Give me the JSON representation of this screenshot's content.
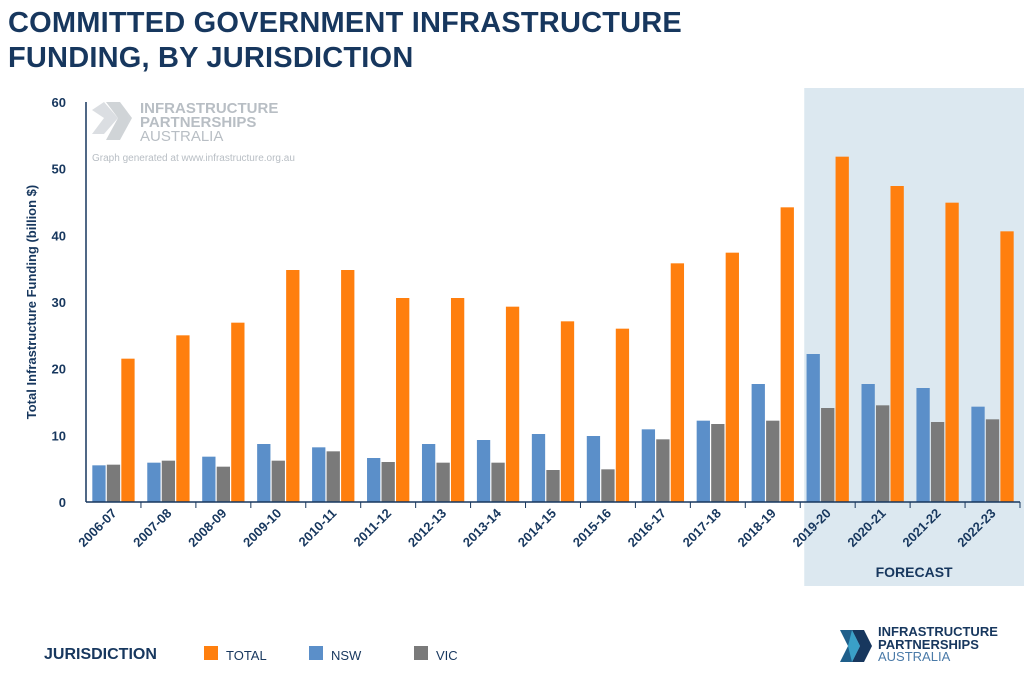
{
  "title_lines": [
    "COMMITTED GOVERNMENT INFRASTRUCTURE",
    "FUNDING, BY JURISDICTION"
  ],
  "legend": {
    "title": "JURISDICTION",
    "items": [
      {
        "label": "TOTAL",
        "color": "#ff7f0e"
      },
      {
        "label": "NSW",
        "color": "#5b8fc9"
      },
      {
        "label": "VIC",
        "color": "#7a7a7a"
      }
    ]
  },
  "watermark": {
    "lines": [
      "INFRASTRUCTURE",
      "PARTNERSHIPS",
      "AUSTRALIA"
    ],
    "note": "Graph generated at www.infrastructure.org.au"
  },
  "logo": {
    "lines": [
      "INFRASTRUCTURE",
      "PARTNERSHIPS",
      "AUSTRALIA"
    ]
  },
  "forecast_label": "FORECAST",
  "colors": {
    "title": "#17375e",
    "forecast_band": "#dce8f0",
    "axis": "#17375e"
  },
  "chart_data": {
    "type": "bar",
    "ylabel": "Total Infrastructure Funding (billion $)",
    "ylim": [
      0,
      60
    ],
    "yticks": [
      0,
      10,
      20,
      30,
      40,
      50,
      60
    ],
    "categories": [
      "2006-07",
      "2007-08",
      "2008-09",
      "2009-10",
      "2010-11",
      "2011-12",
      "2012-13",
      "2013-14",
      "2014-15",
      "2015-16",
      "2016-17",
      "2017-18",
      "2018-19",
      "2019-20",
      "2020-21",
      "2021-22",
      "2022-23"
    ],
    "forecast_start_category": "2019-20",
    "series": [
      {
        "name": "NSW",
        "color": "#5b8fc9",
        "values": [
          5.5,
          5.9,
          6.8,
          8.7,
          8.2,
          6.6,
          8.7,
          9.3,
          10.2,
          9.9,
          10.9,
          12.2,
          17.7,
          22.2,
          17.7,
          17.1,
          14.3
        ]
      },
      {
        "name": "VIC",
        "color": "#7a7a7a",
        "values": [
          5.6,
          6.2,
          5.3,
          6.2,
          7.6,
          6.0,
          5.9,
          5.9,
          4.8,
          4.9,
          9.4,
          11.7,
          12.2,
          14.1,
          14.5,
          12.0,
          12.4
        ]
      },
      {
        "name": "TOTAL",
        "color": "#ff7f0e",
        "values": [
          21.5,
          25.0,
          26.9,
          34.8,
          34.8,
          30.6,
          30.6,
          29.3,
          27.1,
          26.0,
          35.8,
          37.4,
          44.2,
          51.8,
          47.4,
          44.9,
          40.6
        ]
      }
    ]
  }
}
